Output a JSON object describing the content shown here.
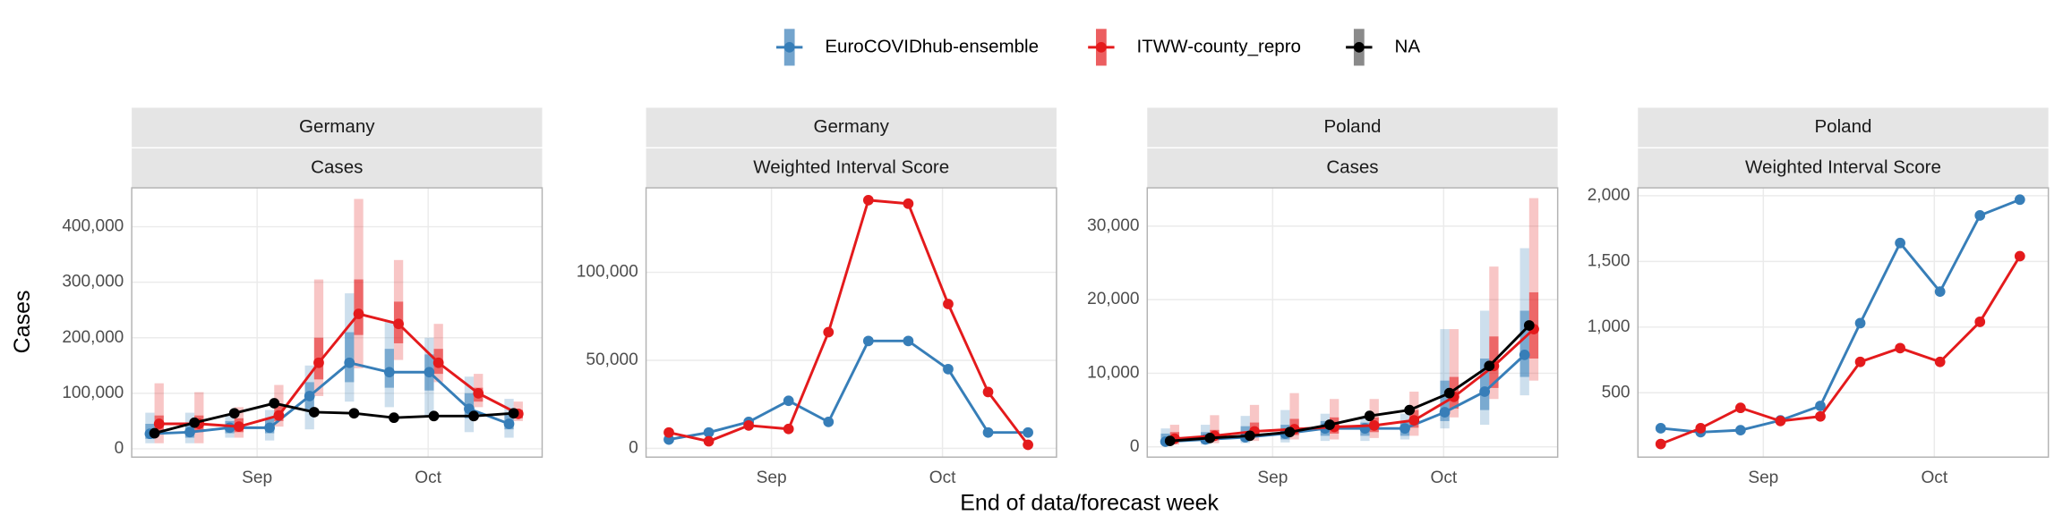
{
  "chart_data": [
    {
      "type": "line",
      "title": "Germany",
      "subtitle": "Cases",
      "ylabel": "Cases",
      "xlabel": "End of data/forecast week",
      "x": [
        "08-14",
        "08-21",
        "08-28",
        "09-04",
        "09-11",
        "09-18",
        "09-25",
        "10-02",
        "10-09",
        "10-16"
      ],
      "xlim": [
        "08-10",
        "10-21"
      ],
      "xticks": [
        {
          "value": "09-01",
          "label": "Sep"
        },
        {
          "value": "10-01",
          "label": "Oct"
        }
      ],
      "ylim": [
        -15000,
        470000
      ],
      "yticks": [
        0,
        {
          "value": 100000,
          "label": "100,000"
        },
        {
          "value": 200000,
          "label": "200,000"
        },
        {
          "value": 300000,
          "label": "300,000"
        },
        {
          "value": 400000,
          "label": "400,000"
        }
      ],
      "grid": true,
      "series": [
        {
          "name": "EuroCOVIDhub-ensemble",
          "color": "#377eb8",
          "values": [
            27000,
            30000,
            38000,
            38000,
            95000,
            155000,
            138000,
            138000,
            72000,
            45000
          ],
          "interval_90": [
            [
              10000,
              65000
            ],
            [
              10000,
              65000
            ],
            [
              20000,
              60000
            ],
            [
              15000,
              70000
            ],
            [
              35000,
              150000
            ],
            [
              85000,
              280000
            ],
            [
              75000,
              230000
            ],
            [
              60000,
              200000
            ],
            [
              30000,
              130000
            ],
            [
              20000,
              90000
            ]
          ],
          "interval_50": [
            [
              18000,
              45000
            ],
            [
              20000,
              45000
            ],
            [
              28000,
              50000
            ],
            [
              28000,
              55000
            ],
            [
              70000,
              120000
            ],
            [
              120000,
              210000
            ],
            [
              110000,
              180000
            ],
            [
              105000,
              170000
            ],
            [
              55000,
              100000
            ],
            [
              35000,
              65000
            ]
          ]
        },
        {
          "name": "ITWW-county_repro",
          "color": "#e41a1c",
          "values": [
            45000,
            45000,
            40000,
            60000,
            155000,
            243000,
            225000,
            155000,
            100000,
            63000
          ],
          "interval_90": [
            [
              10000,
              118000
            ],
            [
              10000,
              102000
            ],
            [
              20000,
              75000
            ],
            [
              40000,
              115000
            ],
            [
              95000,
              305000
            ],
            [
              145000,
              450000
            ],
            [
              160000,
              340000
            ],
            [
              120000,
              225000
            ],
            [
              75000,
              135000
            ],
            [
              50000,
              85000
            ]
          ],
          "interval_50": [
            [
              30000,
              60000
            ],
            [
              30000,
              60000
            ],
            [
              30000,
              55000
            ],
            [
              50000,
              80000
            ],
            [
              125000,
              200000
            ],
            [
              205000,
              305000
            ],
            [
              190000,
              265000
            ],
            [
              135000,
              180000
            ],
            [
              85000,
              110000
            ],
            [
              55000,
              70000
            ]
          ]
        },
        {
          "name": "NA",
          "color": "#000000",
          "values": [
            28000,
            47000,
            64000,
            82000,
            66000,
            64000,
            56000,
            59000,
            59000,
            64000
          ]
        }
      ]
    },
    {
      "type": "line",
      "title": "Germany",
      "subtitle": "Weighted Interval Score",
      "x": [
        "08-14",
        "08-21",
        "08-28",
        "09-04",
        "09-11",
        "09-18",
        "09-25",
        "10-02",
        "10-09",
        "10-16"
      ],
      "xlim": [
        "08-10",
        "10-21"
      ],
      "xticks": [
        {
          "value": "09-01",
          "label": "Sep"
        },
        {
          "value": "10-01",
          "label": "Oct"
        }
      ],
      "ylim": [
        -5000,
        148000
      ],
      "yticks": [
        0,
        {
          "value": 50000,
          "label": "50,000"
        },
        {
          "value": 100000,
          "label": "100,000"
        }
      ],
      "grid": true,
      "series": [
        {
          "name": "EuroCOVIDhub-ensemble",
          "color": "#377eb8",
          "values": [
            5000,
            9000,
            15000,
            27000,
            15000,
            61000,
            61000,
            45000,
            9000,
            9000
          ]
        },
        {
          "name": "ITWW-county_repro",
          "color": "#e41a1c",
          "values": [
            9000,
            4000,
            13000,
            11000,
            66000,
            141000,
            139000,
            82000,
            32000,
            2000
          ]
        }
      ]
    },
    {
      "type": "line",
      "title": "Poland",
      "subtitle": "Cases",
      "x": [
        "08-14",
        "08-21",
        "08-28",
        "09-04",
        "09-11",
        "09-18",
        "09-25",
        "10-02",
        "10-09",
        "10-16"
      ],
      "xlim": [
        "08-10",
        "10-21"
      ],
      "xticks": [
        {
          "value": "09-01",
          "label": "Sep"
        },
        {
          "value": "10-01",
          "label": "Oct"
        }
      ],
      "ylim": [
        -1400,
        35200
      ],
      "yticks": [
        0,
        {
          "value": 10000,
          "label": "10,000"
        },
        {
          "value": 20000,
          "label": "20,000"
        },
        {
          "value": 30000,
          "label": "30,000"
        }
      ],
      "grid": true,
      "series": [
        {
          "name": "EuroCOVIDhub-ensemble",
          "color": "#377eb8",
          "values": [
            700,
            1000,
            1300,
            1800,
            2500,
            2500,
            2500,
            4700,
            7500,
            12500
          ],
          "interval_90": [
            [
              300,
              2500
            ],
            [
              300,
              3000
            ],
            [
              500,
              4200
            ],
            [
              600,
              5000
            ],
            [
              800,
              4500
            ],
            [
              800,
              4000
            ],
            [
              1000,
              4500
            ],
            [
              2500,
              16000
            ],
            [
              3000,
              18500
            ],
            [
              7000,
              27000
            ]
          ],
          "interval_50": [
            [
              500,
              1800
            ],
            [
              600,
              2000
            ],
            [
              800,
              2800
            ],
            [
              1000,
              3000
            ],
            [
              1500,
              3500
            ],
            [
              1500,
              3300
            ],
            [
              1500,
              3500
            ],
            [
              3500,
              9000
            ],
            [
              5000,
              12000
            ],
            [
              9500,
              18500
            ]
          ]
        },
        {
          "name": "ITWW-county_repro",
          "color": "#e41a1c",
          "values": [
            1100,
            1500,
            2100,
            2400,
            2700,
            2900,
            3600,
            6800,
            11000,
            16000
          ],
          "interval_90": [
            [
              300,
              3000
            ],
            [
              500,
              4300
            ],
            [
              800,
              5700
            ],
            [
              1000,
              7300
            ],
            [
              1000,
              6500
            ],
            [
              1200,
              6500
            ],
            [
              1500,
              7500
            ],
            [
              4000,
              16000
            ],
            [
              6500,
              24500
            ],
            [
              9000,
              33800
            ]
          ],
          "interval_50": [
            [
              700,
              2000
            ],
            [
              900,
              2300
            ],
            [
              1400,
              3300
            ],
            [
              1600,
              3800
            ],
            [
              1800,
              4000
            ],
            [
              2000,
              4000
            ],
            [
              2600,
              5000
            ],
            [
              5200,
              9500
            ],
            [
              8000,
              15000
            ],
            [
              12000,
              21000
            ]
          ]
        },
        {
          "name": "NA",
          "color": "#000000",
          "values": [
            800,
            1200,
            1500,
            2000,
            3000,
            4200,
            5000,
            7300,
            11000,
            16500
          ]
        }
      ]
    },
    {
      "type": "line",
      "title": "Poland",
      "subtitle": "Weighted Interval Score",
      "x": [
        "08-14",
        "08-21",
        "08-28",
        "09-04",
        "09-11",
        "09-18",
        "09-25",
        "10-02",
        "10-09",
        "10-16"
      ],
      "xlim": [
        "08-10",
        "10-21"
      ],
      "xticks": [
        {
          "value": "09-01",
          "label": "Sep"
        },
        {
          "value": "10-01",
          "label": "Oct"
        }
      ],
      "ylim": [
        10,
        2060
      ],
      "yticks": [
        500,
        {
          "value": 1000,
          "label": "1,000"
        },
        {
          "value": 1500,
          "label": "1,500"
        },
        {
          "value": 2000,
          "label": "2,000"
        }
      ],
      "grid": true,
      "series": [
        {
          "name": "EuroCOVIDhub-ensemble",
          "color": "#377eb8",
          "values": [
            230,
            200,
            215,
            290,
            400,
            1030,
            1640,
            1270,
            1850,
            1970
          ]
        },
        {
          "name": "ITWW-county_repro",
          "color": "#e41a1c",
          "values": [
            110,
            230,
            385,
            285,
            320,
            735,
            840,
            735,
            1040,
            1540
          ]
        }
      ]
    }
  ]
}
